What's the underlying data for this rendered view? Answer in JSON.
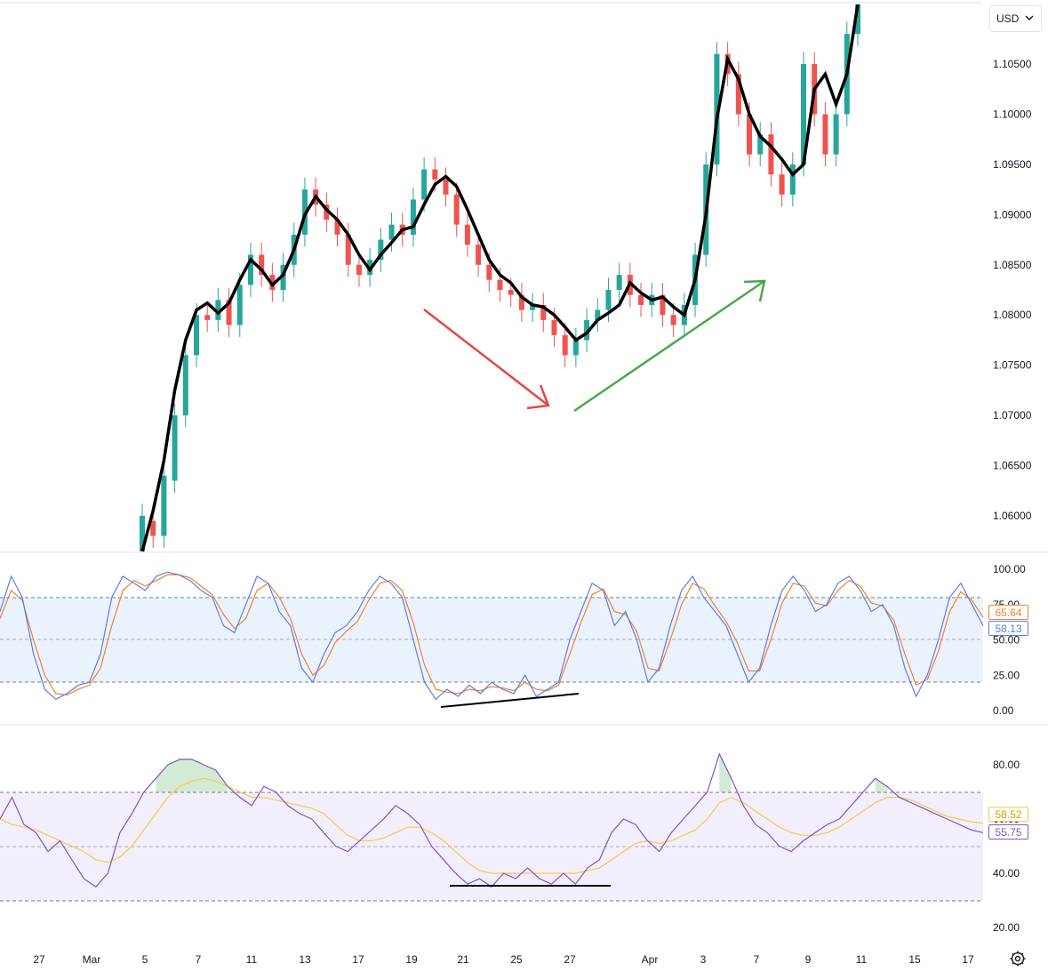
{
  "currency": {
    "label": "USD"
  },
  "colors": {
    "price_ma": "#000000",
    "candle_up": "#26a69a",
    "candle_down": "#ef5350",
    "arrow_down": "#e84545",
    "arrow_up": "#4aa84a",
    "stoch_k": "#5b7de8",
    "stoch_d": "#f08030",
    "stoch_band": "#eaf3fd",
    "rsi_line": "#7e57c2",
    "rsi_ma": "#f2cd4b",
    "rsi_band": "#f2eefb",
    "rsi_overbought_fill": "#c8e6c9",
    "divergence_line": "#000000"
  },
  "x_axis": {
    "labels": [
      "27",
      "Mar",
      "5",
      "7",
      "11",
      "13",
      "17",
      "19",
      "21",
      "25",
      "27",
      "Apr",
      "3",
      "7",
      "9",
      "11",
      "15",
      "17"
    ]
  },
  "chart_data": [
    {
      "type": "line",
      "panel": "price",
      "y_ticks": [
        "1.10500",
        "1.10000",
        "1.09500",
        "1.09000",
        "1.08500",
        "1.08000",
        "1.07500",
        "1.07000",
        "1.06500",
        "1.06000"
      ],
      "ylim": [
        1.0565,
        1.1115
      ],
      "note_candles": "candlestick bars around moving average",
      "series": [
        {
          "values": [
            1.0555,
            1.0605,
            1.0655,
            1.0725,
            1.0775,
            1.0805,
            1.0812,
            1.0802,
            1.0812,
            1.0835,
            1.0855,
            1.0845,
            1.083,
            1.084,
            1.0865,
            1.09,
            1.0918,
            1.0905,
            1.0895,
            1.088,
            1.086,
            1.0845,
            1.086,
            1.0872,
            1.0885,
            1.0888,
            1.091,
            1.093,
            1.0938,
            1.0928,
            1.0905,
            1.088,
            1.0855,
            1.084,
            1.0832,
            1.0818,
            1.081,
            1.0808,
            1.08,
            1.0788,
            1.0775,
            1.0782,
            1.0795,
            1.0802,
            1.081,
            1.0832,
            1.0822,
            1.0815,
            1.0818,
            1.0808,
            1.08,
            1.0835,
            1.09,
            1.0995,
            1.1055,
            1.1035,
            1.1,
            1.0978,
            1.0968,
            1.0955,
            1.094,
            1.095,
            1.1025,
            1.104,
            1.101,
            1.104,
            1.112
          ]
        }
      ],
      "candles": [
        [
          1.056,
          1.06
        ],
        [
          1.0595,
          1.058
        ],
        [
          1.058,
          1.064
        ],
        [
          1.0635,
          1.07
        ],
        [
          1.07,
          1.076
        ],
        [
          1.076,
          1.08
        ],
        [
          1.08,
          1.0795
        ],
        [
          1.0795,
          1.0815
        ],
        [
          1.0815,
          1.079
        ],
        [
          1.079,
          1.083
        ],
        [
          1.083,
          1.086
        ],
        [
          1.086,
          1.084
        ],
        [
          1.084,
          1.0825
        ],
        [
          1.0825,
          1.085
        ],
        [
          1.085,
          1.088
        ],
        [
          1.088,
          1.0925
        ],
        [
          1.0925,
          1.091
        ],
        [
          1.091,
          1.0895
        ],
        [
          1.0895,
          1.088
        ],
        [
          1.088,
          1.085
        ],
        [
          1.085,
          1.084
        ],
        [
          1.084,
          1.0855
        ],
        [
          1.0855,
          1.0875
        ],
        [
          1.0875,
          1.089
        ],
        [
          1.089,
          1.088
        ],
        [
          1.088,
          1.0915
        ],
        [
          1.0915,
          1.0945
        ],
        [
          1.0945,
          1.0935
        ],
        [
          1.0935,
          1.092
        ],
        [
          1.092,
          1.089
        ],
        [
          1.089,
          1.087
        ],
        [
          1.087,
          1.085
        ],
        [
          1.085,
          1.0835
        ],
        [
          1.0835,
          1.0825
        ],
        [
          1.0825,
          1.082
        ],
        [
          1.082,
          1.0805
        ],
        [
          1.0805,
          1.081
        ],
        [
          1.081,
          1.0795
        ],
        [
          1.0795,
          1.078
        ],
        [
          1.078,
          1.076
        ],
        [
          1.076,
          1.0775
        ],
        [
          1.0775,
          1.0795
        ],
        [
          1.0795,
          1.0805
        ],
        [
          1.0805,
          1.0825
        ],
        [
          1.0825,
          1.084
        ],
        [
          1.084,
          1.082
        ],
        [
          1.082,
          1.081
        ],
        [
          1.081,
          1.082
        ],
        [
          1.082,
          1.08
        ],
        [
          1.08,
          1.079
        ],
        [
          1.079,
          1.081
        ],
        [
          1.081,
          1.086
        ],
        [
          1.086,
          1.095
        ],
        [
          1.095,
          1.106
        ],
        [
          1.106,
          1.104
        ],
        [
          1.104,
          1.1
        ],
        [
          1.1,
          1.096
        ],
        [
          1.096,
          1.098
        ],
        [
          1.098,
          1.094
        ],
        [
          1.094,
          1.092
        ],
        [
          1.092,
          1.095
        ],
        [
          1.095,
          1.105
        ],
        [
          1.105,
          1.1
        ],
        [
          1.1,
          1.096
        ],
        [
          1.096,
          1.1
        ],
        [
          1.1,
          1.108
        ],
        [
          1.108,
          1.115
        ]
      ]
    },
    {
      "type": "line",
      "panel": "stochastic",
      "y_ticks": [
        "100.00",
        "75.00",
        "50.00",
        "25.00",
        "0.00"
      ],
      "ylim": [
        0,
        100
      ],
      "band": [
        20,
        80
      ],
      "current": {
        "d": "65.64",
        "k": "58.13"
      },
      "series": [
        {
          "key": "k",
          "values": [
            70,
            95,
            80,
            40,
            15,
            8,
            12,
            18,
            20,
            40,
            80,
            95,
            90,
            85,
            95,
            98,
            96,
            92,
            85,
            80,
            60,
            55,
            75,
            95,
            90,
            70,
            60,
            30,
            20,
            40,
            55,
            60,
            70,
            85,
            95,
            90,
            80,
            50,
            20,
            8,
            15,
            10,
            18,
            12,
            20,
            15,
            12,
            25,
            10,
            15,
            20,
            50,
            70,
            90,
            85,
            60,
            70,
            50,
            20,
            30,
            60,
            85,
            95,
            80,
            70,
            60,
            40,
            20,
            30,
            60,
            85,
            95,
            85,
            70,
            75,
            90,
            95,
            85,
            70,
            75,
            60,
            30,
            10,
            25,
            50,
            80,
            90,
            75,
            60
          ]
        },
        {
          "key": "d",
          "values": [
            65,
            85,
            78,
            50,
            25,
            12,
            11,
            15,
            18,
            30,
            60,
            85,
            92,
            88,
            92,
            96,
            96,
            94,
            88,
            82,
            68,
            58,
            65,
            85,
            90,
            80,
            65,
            40,
            25,
            32,
            48,
            56,
            63,
            78,
            90,
            92,
            85,
            62,
            32,
            15,
            13,
            12,
            15,
            14,
            17,
            16,
            14,
            20,
            15,
            14,
            18,
            40,
            62,
            82,
            86,
            70,
            68,
            56,
            30,
            28,
            50,
            75,
            90,
            86,
            74,
            63,
            48,
            28,
            28,
            50,
            76,
            90,
            88,
            76,
            74,
            85,
            92,
            88,
            76,
            74,
            64,
            40,
            18,
            22,
            42,
            70,
            84,
            78,
            66
          ]
        }
      ]
    },
    {
      "type": "line",
      "panel": "rsi",
      "y_ticks": [
        "80.00",
        "60.00",
        "40.00",
        "20.00"
      ],
      "ylim": [
        12,
        90
      ],
      "band": [
        30,
        70
      ],
      "current": {
        "ma": "58.52",
        "rsi": "55.75"
      },
      "series": [
        {
          "key": "rsi",
          "values": [
            60,
            68,
            58,
            55,
            48,
            52,
            45,
            38,
            35,
            40,
            55,
            62,
            70,
            75,
            80,
            82,
            82,
            80,
            78,
            72,
            68,
            65,
            72,
            70,
            65,
            62,
            60,
            55,
            50,
            48,
            52,
            56,
            60,
            65,
            62,
            58,
            50,
            45,
            40,
            36,
            38,
            35,
            40,
            38,
            42,
            38,
            36,
            40,
            36,
            42,
            45,
            55,
            60,
            58,
            52,
            48,
            55,
            60,
            65,
            70,
            84,
            75,
            65,
            58,
            55,
            50,
            48,
            52,
            55,
            58,
            60,
            65,
            70,
            75,
            72,
            68,
            66,
            64,
            62,
            60,
            58,
            56,
            55
          ]
        },
        {
          "key": "ma",
          "values": [
            60,
            58,
            57,
            56,
            54,
            52,
            50,
            48,
            45,
            44,
            46,
            50,
            56,
            62,
            68,
            72,
            74,
            75,
            74,
            72,
            70,
            68,
            68,
            67,
            66,
            65,
            64,
            62,
            58,
            54,
            52,
            52,
            53,
            55,
            57,
            57,
            55,
            52,
            48,
            44,
            41,
            40,
            40,
            40,
            40,
            40,
            40,
            40,
            40,
            41,
            42,
            45,
            48,
            51,
            52,
            51,
            52,
            54,
            56,
            60,
            66,
            68,
            66,
            63,
            60,
            57,
            55,
            54,
            54,
            55,
            57,
            60,
            63,
            66,
            68,
            68,
            67,
            65,
            63,
            61,
            60,
            59,
            58.5
          ]
        }
      ]
    }
  ]
}
